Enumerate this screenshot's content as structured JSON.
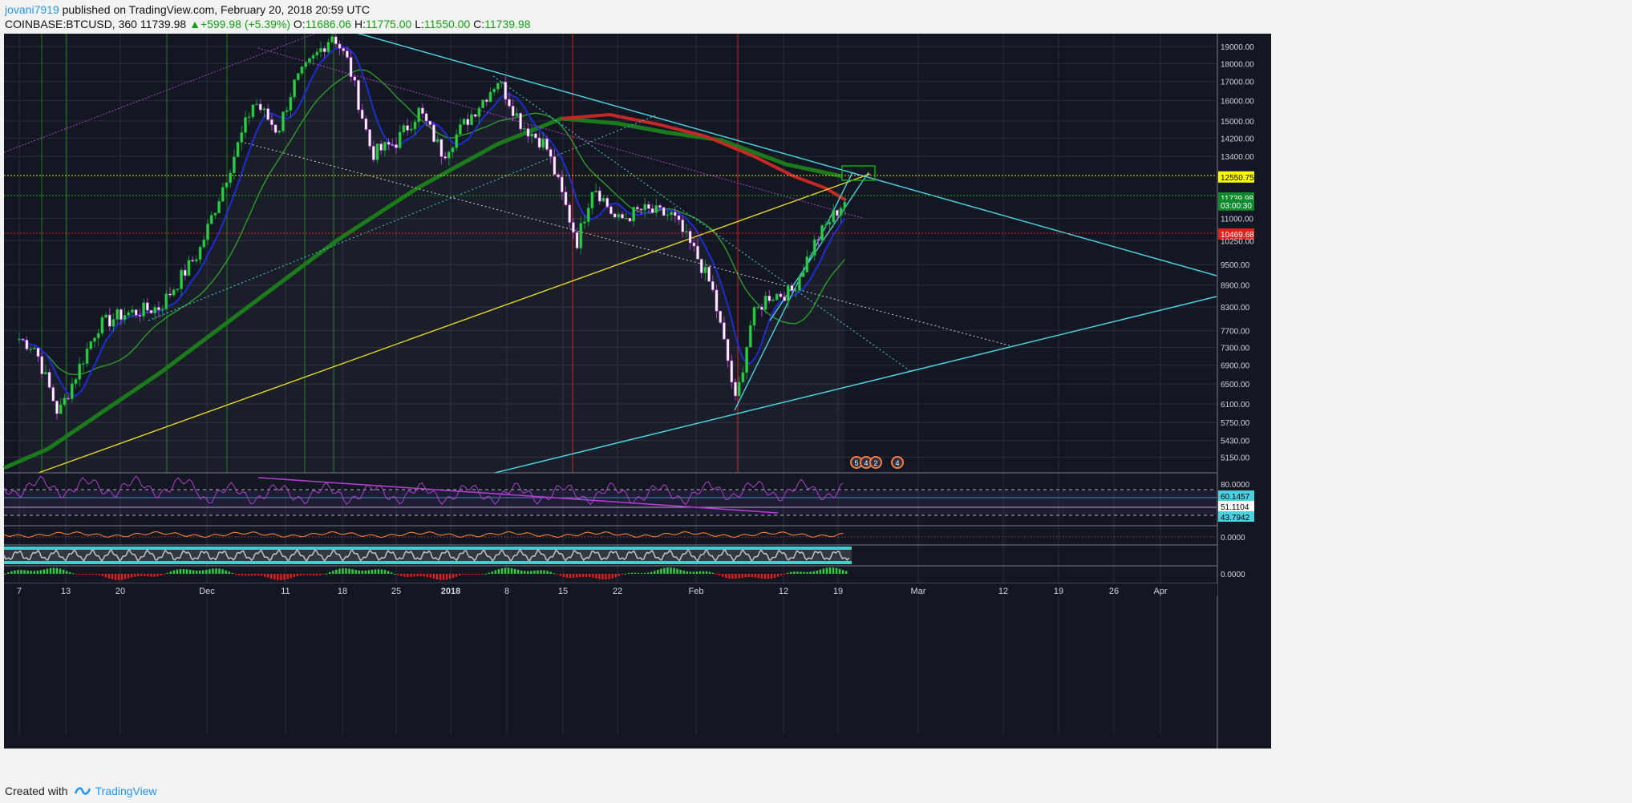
{
  "header": {
    "username": "jovani7919",
    "published_text": " published on TradingView.com, February 20, 2018 20:59 UTC",
    "symbol": "COINBASE:BTCUSD, 360",
    "last": "11739.98",
    "change": "+599.98 (+5.39%)",
    "o_label": "O:",
    "o": "11686.06",
    "h_label": "H:",
    "h": "11775.00",
    "l_label": "L:",
    "l": "11550.00",
    "c_label": "C:",
    "c": "11739.98"
  },
  "footer": {
    "created_with": "Created with",
    "brand": "TradingView"
  },
  "colors": {
    "background": "#131722",
    "grid": "#2a2e39",
    "bull": "#26a69a",
    "bear": "#ef5350",
    "cyan_line": "#4dd0e1",
    "yellow_line": "#e6d62a",
    "magenta_line": "#b23fcf",
    "ma_dark_green": "#1b7a1b",
    "ma_red": "#c62828",
    "ma_blue": "#1f2bd6",
    "ma_green": "#2e9a2e",
    "price_tag_green": "#0c8a2c",
    "price_tag_red": "#e41e1e",
    "price_tag_yellow": "#ffff00"
  },
  "chart_data": {
    "type": "candlestick",
    "symbol": "COINBASE:BTCUSD",
    "timeframe": "360",
    "price_axis": {
      "ticks": [
        "19000.00",
        "18000.00",
        "17000.00",
        "16000.00",
        "15000.00",
        "14200.00",
        "13400.00",
        "12550.75",
        "11739.98",
        "03:00:30",
        "11000.00",
        "10469.68",
        "10250.00",
        "9500.00",
        "8900.00",
        "8300.00",
        "7700.00",
        "7300.00",
        "6900.00",
        "6500.00",
        "6100.00",
        "5750.00",
        "5430.00",
        "5150.00"
      ],
      "highlighted": [
        {
          "label": "12550.75",
          "value": 12550.75,
          "style": "yellow"
        },
        {
          "label": "11739.98",
          "value": 11739.98,
          "style": "green"
        },
        {
          "label": "03:00:30",
          "value": 11480,
          "style": "green"
        },
        {
          "label": "10469.68",
          "value": 10469.68,
          "style": "red"
        }
      ],
      "scale": "log",
      "range": [
        4900,
        20200
      ]
    },
    "time_axis": {
      "labels": [
        "7",
        "13",
        "20",
        "Dec",
        "11",
        "18",
        "25",
        "2018",
        "8",
        "15",
        "22",
        "Feb",
        "12",
        "19",
        "Mar",
        "12",
        "19",
        "26",
        "Apr"
      ],
      "bold": [
        "2018"
      ]
    },
    "approx_path": [
      [
        "Nov 7",
        7500
      ],
      [
        "Nov 9",
        7300
      ],
      [
        "Nov 12",
        5900
      ],
      [
        "Nov 14",
        6600
      ],
      [
        "Nov 17",
        7800
      ],
      [
        "Nov 20",
        8100
      ],
      [
        "Nov 25",
        8300
      ],
      [
        "Nov 30",
        9900
      ],
      [
        "Dec 7",
        16000
      ],
      [
        "Dec 10",
        14500
      ],
      [
        "Dec 12",
        16800
      ],
      [
        "Dec 17",
        19800
      ],
      [
        "Dec 19",
        18000
      ],
      [
        "Dec 22",
        13500
      ],
      [
        "Dec 25",
        14000
      ],
      [
        "Dec 28",
        15500
      ],
      [
        "Dec 31",
        13500
      ],
      [
        "Jan 3",
        15000
      ],
      [
        "Jan 7",
        17100
      ],
      [
        "Jan 10",
        14800
      ],
      [
        "Jan 13",
        13900
      ],
      [
        "Jan 16",
        11000
      ],
      [
        "Jan 17",
        10200
      ],
      [
        "Jan 19",
        12300
      ],
      [
        "Jan 22",
        10900
      ],
      [
        "Jan 25",
        11300
      ],
      [
        "Jan 29",
        11100
      ],
      [
        "Feb 1",
        9800
      ],
      [
        "Feb 3",
        8800
      ],
      [
        "Feb 5",
        7000
      ],
      [
        "Feb 6",
        6100
      ],
      [
        "Feb 8",
        8000
      ],
      [
        "Feb 10",
        8600
      ],
      [
        "Feb 13",
        8700
      ],
      [
        "Feb 16",
        10200
      ],
      [
        "Feb 18",
        11000
      ],
      [
        "Feb 20",
        11740
      ]
    ],
    "indicators": [
      {
        "pane": "rsi",
        "levels": [
          "80.0000",
          "60.1457",
          "51.1104",
          "43.7942"
        ]
      },
      {
        "pane": "osc1",
        "levels": [
          "0.0000"
        ]
      },
      {
        "pane": "osc2",
        "levels": [
          "0.0000"
        ]
      }
    ]
  }
}
